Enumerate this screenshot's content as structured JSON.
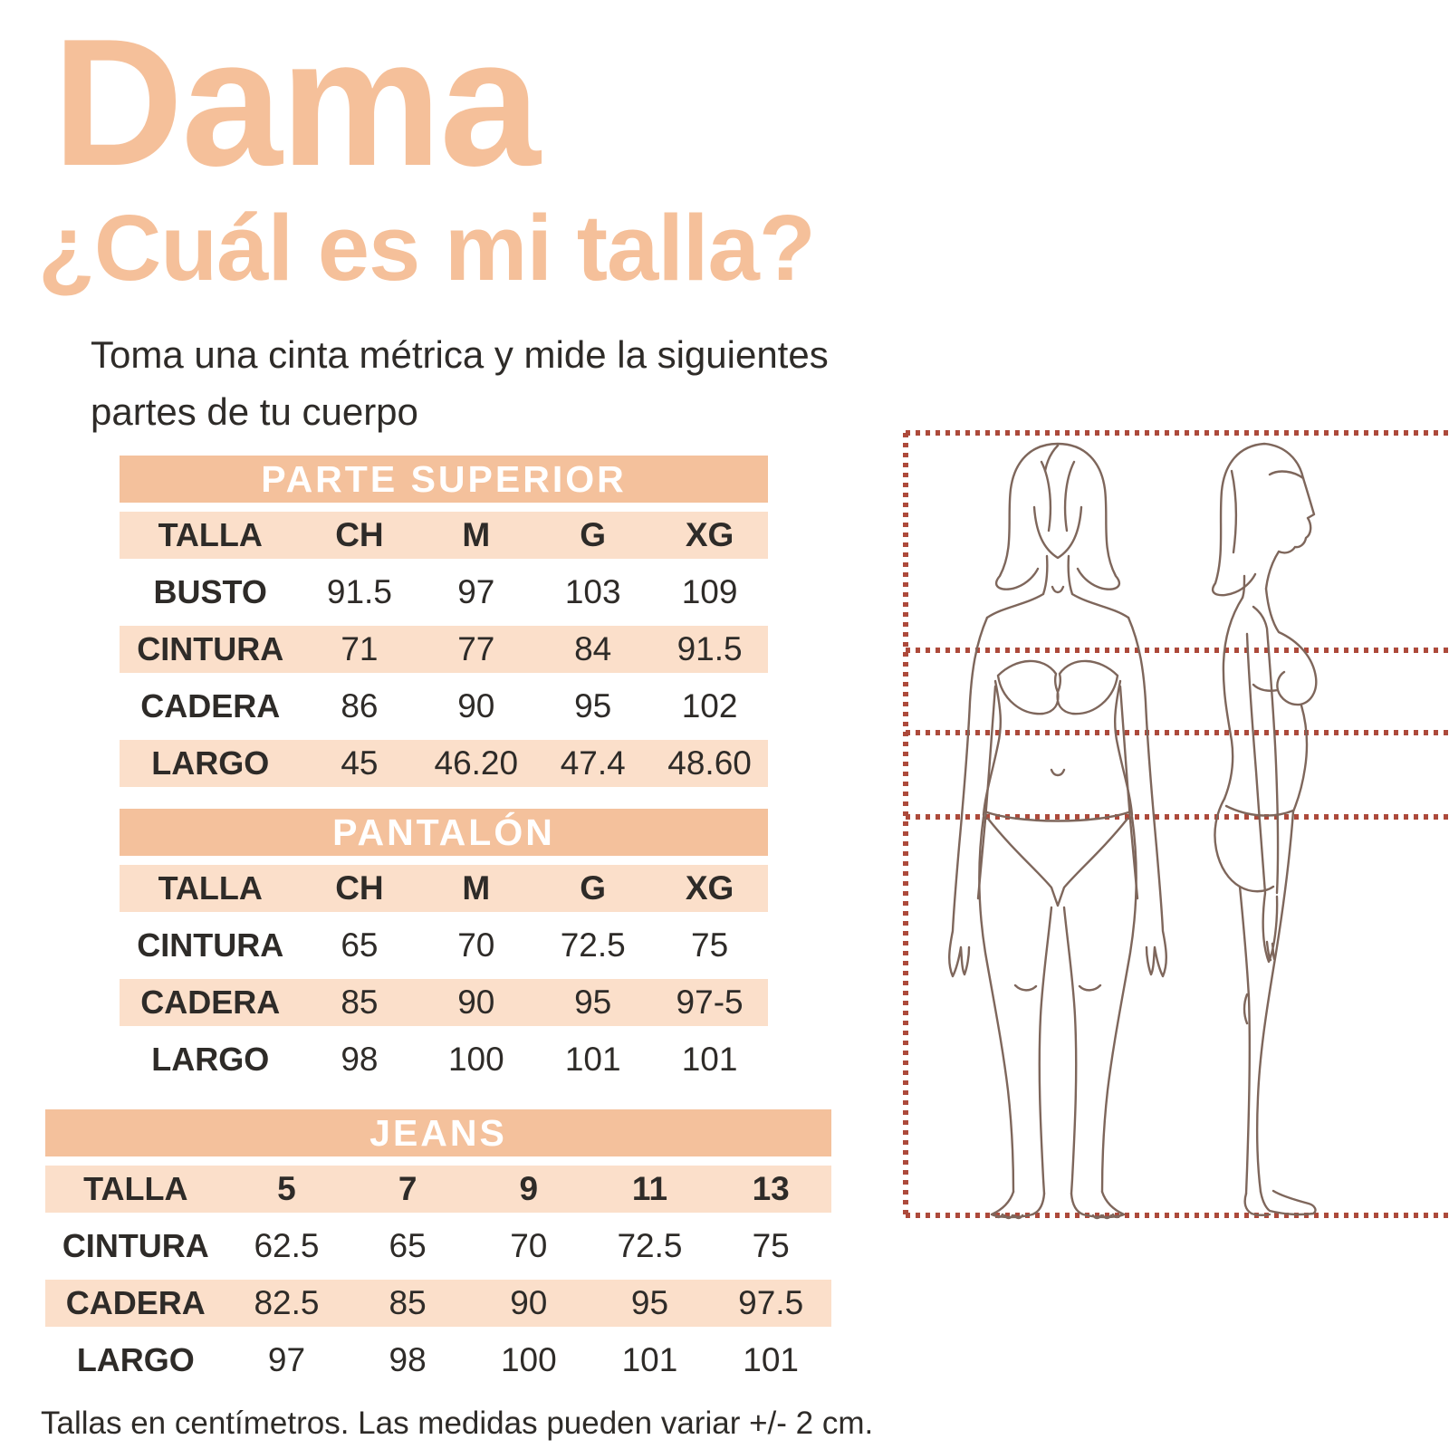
{
  "page": {
    "title": "Dama",
    "subtitle": "¿Cuál es mi talla?",
    "intro_line1": "Toma una cinta métrica y mide la siguientes",
    "intro_line2": "partes de tu cuerpo",
    "footnote": "Tallas en centímetros. Las medidas pueden variar +/- 2 cm."
  },
  "colors": {
    "accent_peach": "#f5c09a",
    "table_header_bg": "#f4c19c",
    "table_row_tint": "#fbdfca",
    "table_header_text": "#ffffff",
    "text_dark": "#2e2b28",
    "guide_dotted_line": "#ad4a3b",
    "figure_outline": "#7e665b"
  },
  "tables": [
    {
      "title": "PARTE SUPERIOR",
      "header_row": [
        "TALLA",
        "CH",
        "M",
        "G",
        "XG"
      ],
      "rows": [
        [
          "BUSTO",
          "91.5",
          "97",
          "103",
          "109"
        ],
        [
          "CINTURA",
          "71",
          "77",
          "84",
          "91.5"
        ],
        [
          "CADERA",
          "86",
          "90",
          "95",
          "102"
        ],
        [
          "LARGO",
          "45",
          "46.20",
          "47.4",
          "48.60"
        ]
      ]
    },
    {
      "title": "PANTALÓN",
      "header_row": [
        "TALLA",
        "CH",
        "M",
        "G",
        "XG"
      ],
      "rows": [
        [
          "CINTURA",
          "65",
          "70",
          "72.5",
          "75"
        ],
        [
          "CADERA",
          "85",
          "90",
          "95",
          "97-5"
        ],
        [
          "LARGO",
          "98",
          "100",
          "101",
          "101"
        ]
      ]
    },
    {
      "title": "JEANS",
      "header_row": [
        "TALLA",
        "5",
        "7",
        "9",
        "11",
        "13"
      ],
      "rows": [
        [
          "CINTURA",
          "62.5",
          "65",
          "70",
          "72.5",
          "75"
        ],
        [
          "CADERA",
          "82.5",
          "85",
          "90",
          "95",
          "97.5"
        ],
        [
          "LARGO",
          "97",
          "98",
          "100",
          "101",
          "101"
        ]
      ]
    }
  ],
  "figure": {
    "description": "Line-art woman, front view and side view, inside dotted measurement frame",
    "views": [
      "front",
      "side"
    ],
    "guide_lines": [
      "top-of-head",
      "bust",
      "waist",
      "hip",
      "floor"
    ]
  }
}
